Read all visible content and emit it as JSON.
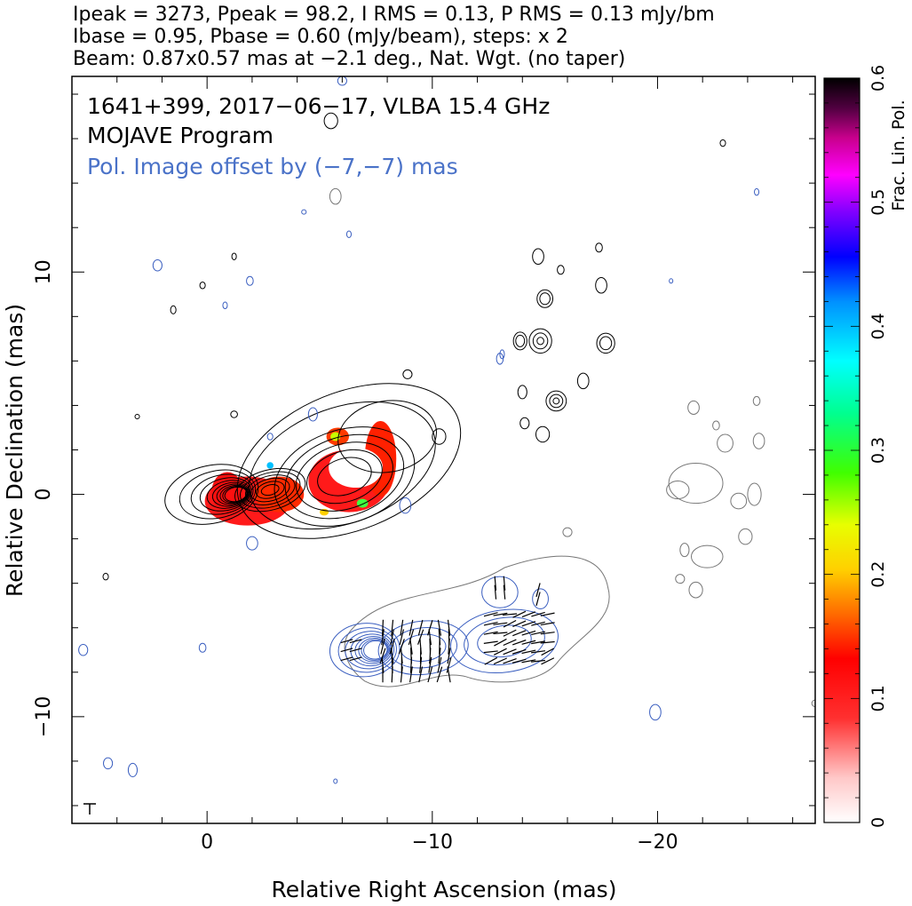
{
  "chart_data": {
    "type": "heatmap",
    "header_lines": [
      "Ipeak = 3273, Ppeak = 98.2, I RMS = 0.13, P RMS = 0.13 mJy/bm",
      "Ibase = 0.95, Pbase = 0.60 (mJy/beam), steps: x 2",
      "Beam: 0.87x0.57 mas at −2.1 deg., Nat. Wgt. (no taper)"
    ],
    "annotations": [
      "1641+399, 2017−06−17, VLBA 15.4 GHz",
      "MOJAVE Program",
      "Pol. Image offset by (−7,−7) mas"
    ],
    "xlabel": "Relative Right Ascension (mas)",
    "ylabel": "Relative Declination (mas)",
    "colorbar_label": "Frac. Lin. Pol.",
    "xlim": [
      6,
      -27
    ],
    "ylim": [
      -14.8,
      18.8
    ],
    "x_ticks": [
      {
        "value": 0,
        "label": "0"
      },
      {
        "value": -10,
        "label": "−10"
      },
      {
        "value": -20,
        "label": "−20"
      }
    ],
    "y_ticks": [
      {
        "value": 10,
        "label": "10"
      },
      {
        "value": 0,
        "label": "0"
      },
      {
        "value": -10,
        "label": "−10"
      }
    ],
    "colorbar_range": [
      0,
      0.6
    ],
    "colorbar_ticks": [
      {
        "value": 0,
        "label": "0"
      },
      {
        "value": 0.1,
        "label": "0.1"
      },
      {
        "value": 0.2,
        "label": "0.2"
      },
      {
        "value": 0.3,
        "label": "0.3"
      },
      {
        "value": 0.4,
        "label": "0.4"
      },
      {
        "value": 0.5,
        "label": "0.5"
      },
      {
        "value": 0.6,
        "label": "0.6"
      }
    ],
    "colors": {
      "total_intensity_contour": "#000000",
      "polarized_contour": "#3b5fc0",
      "negative_contour": "#777777",
      "offset_text": "#4a72c8",
      "fractional_pol_low": "#ff1a1a"
    },
    "total_intensity_components": [
      {
        "x": 0.0,
        "y": 0.0,
        "peak": 1.0
      },
      {
        "x": -1.6,
        "y": -0.3,
        "peak": 0.55
      },
      {
        "x": -2.8,
        "y": 0.3,
        "peak": 0.45
      },
      {
        "x": -5.9,
        "y": 0.3,
        "peak": 0.25
      },
      {
        "x": -8.2,
        "y": 1.2,
        "peak": 0.12
      }
    ],
    "fractional_polarization_regions": [
      {
        "x": -2.0,
        "y": -0.2,
        "value": 0.06
      },
      {
        "x": -6.2,
        "y": 0.6,
        "value": 0.07
      },
      {
        "x": -7.7,
        "y": 1.5,
        "value": 0.06
      }
    ]
  }
}
